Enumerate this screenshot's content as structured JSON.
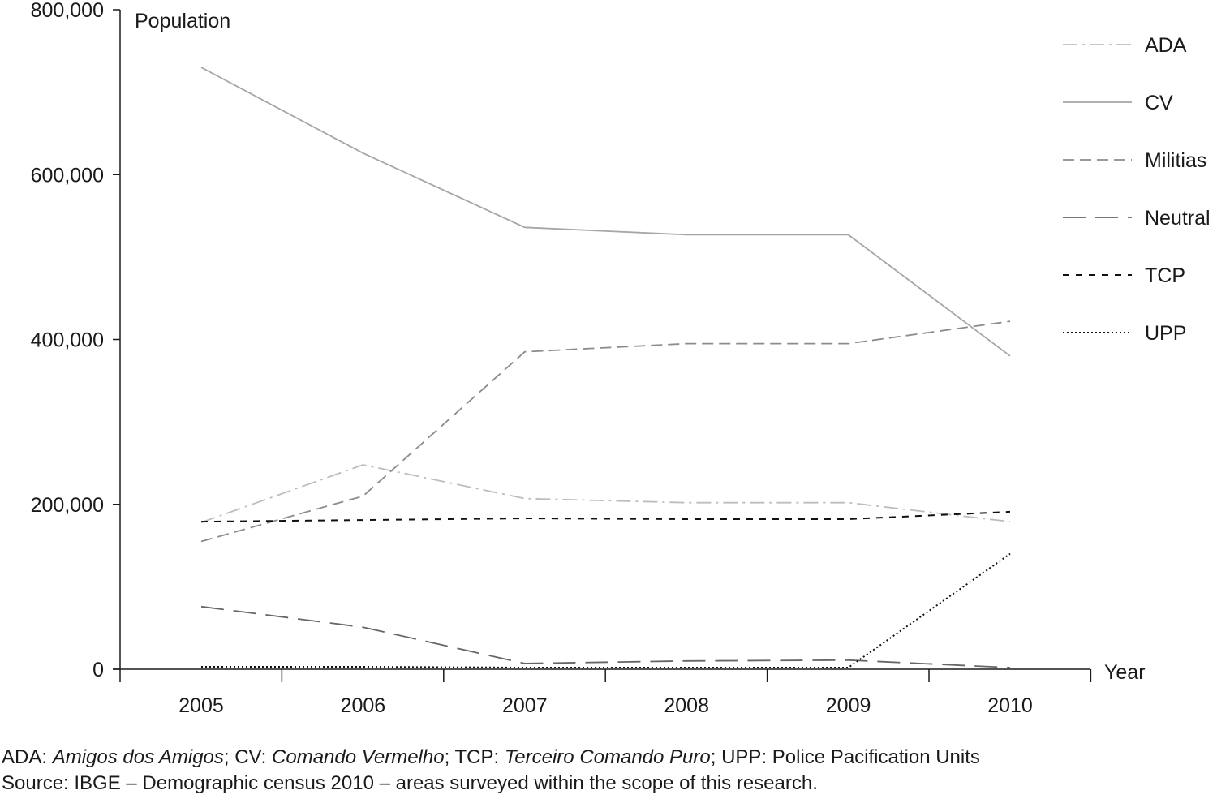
{
  "chart_data": {
    "type": "line",
    "title": "",
    "xlabel": "Year",
    "ylabel": "Population",
    "x": [
      "2005",
      "2006",
      "2007",
      "2008",
      "2009",
      "2010"
    ],
    "ylim": [
      0,
      800000
    ],
    "yticks": [
      0,
      200000,
      400000,
      600000,
      800000
    ],
    "ytick_labels": [
      "0",
      "200,000",
      "400,000",
      "600,000",
      "800,000"
    ],
    "grid": false,
    "legend_position": "top-right",
    "series": [
      {
        "name": "ADA",
        "values": [
          178000,
          248000,
          207000,
          202000,
          202000,
          179000
        ],
        "color": "#bdbdbd",
        "dash": "dash-dot"
      },
      {
        "name": "CV",
        "values": [
          730000,
          626000,
          536000,
          527000,
          527000,
          380000
        ],
        "color": "#a6a6a6",
        "dash": "solid"
      },
      {
        "name": "Militias",
        "values": [
          155000,
          210000,
          385000,
          395000,
          395000,
          422000
        ],
        "color": "#8c8c8c",
        "dash": "dashed"
      },
      {
        "name": "Neutral",
        "values": [
          76000,
          51000,
          7000,
          10000,
          11000,
          2000
        ],
        "color": "#666666",
        "dash": "long-dash"
      },
      {
        "name": "TCP",
        "values": [
          179000,
          181000,
          183000,
          182000,
          182000,
          191000
        ],
        "color": "#111111",
        "dash": "short-dash"
      },
      {
        "name": "UPP",
        "values": [
          3000,
          3000,
          2000,
          2000,
          2000,
          140000
        ],
        "color": "#111111",
        "dash": "dotted"
      }
    ]
  },
  "footnote": {
    "ada_abbr": "ADA: ",
    "ada_full": "Amigos dos Amigos",
    "cv_abbr": "; CV: ",
    "cv_full": "Comando Vermelho",
    "tcp_abbr": "; TCP: ",
    "tcp_full": "Terceiro Comando Puro",
    "upp_text": "; UPP: Police Pacification Units",
    "source": "Source: IBGE – Demographic census 2010 – areas surveyed within the scope of this research."
  }
}
